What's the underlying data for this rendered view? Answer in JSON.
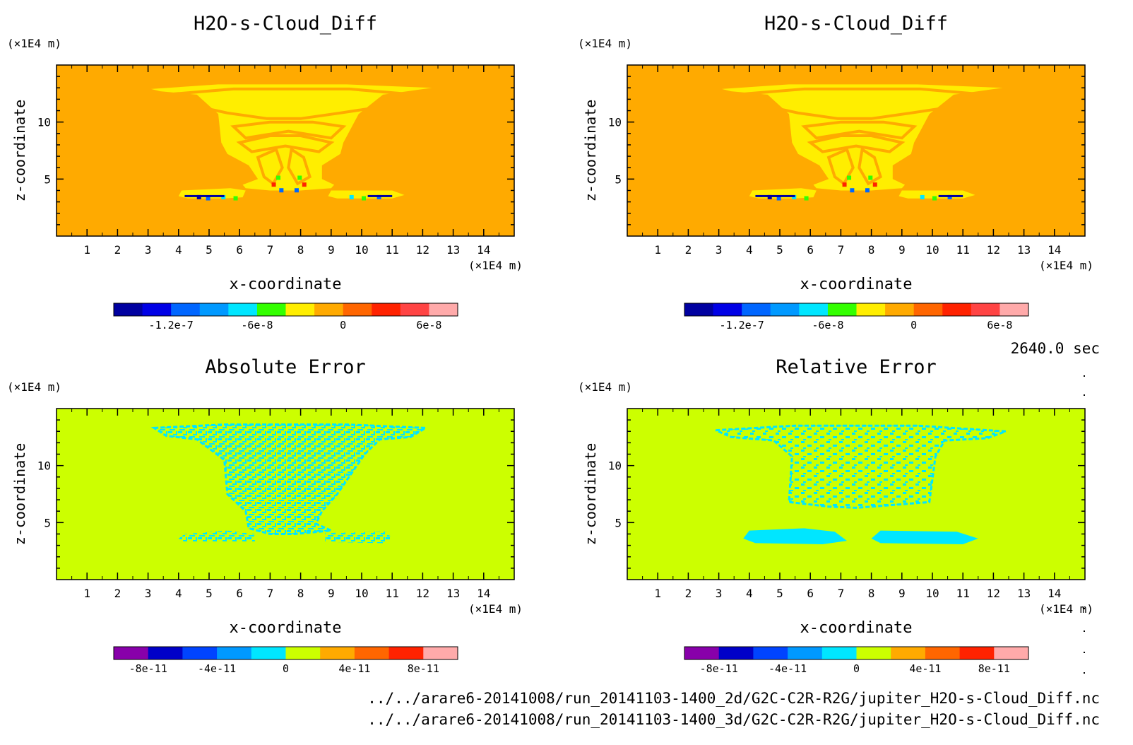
{
  "time_label": "2640.0 sec",
  "file_lines": [
    "../../arare6-20141008/run_20141103-1400_2d/G2C-C2R-R2G/jupiter_H2O-s-Cloud_Diff.nc",
    "../../arare6-20141008/run_20141103-1400_3d/G2C-C2R-R2G/jupiter_H2O-s-Cloud_Diff.nc"
  ],
  "chart_data": [
    {
      "type": "heatmap",
      "title": "H2O-s-Cloud_Diff",
      "xlabel": "x-coordinate",
      "ylabel": "z-coordinate",
      "x_unit": "(×1E4 m)",
      "y_unit": "(×1E4 m)",
      "xlim": [
        0,
        15
      ],
      "ylim": [
        0,
        15
      ],
      "xticks": [
        "1",
        "2",
        "3",
        "4",
        "5",
        "6",
        "7",
        "8",
        "9",
        "10",
        "11",
        "12",
        "13",
        "14"
      ],
      "yticks": [
        "5",
        "10"
      ],
      "background_color": "#ffaa00",
      "feature_color": "#ffee00",
      "colorbar": {
        "colors": [
          "#0000a0",
          "#0000e6",
          "#0066ff",
          "#0099ff",
          "#00e6ff",
          "#33ff00",
          "#ffee00",
          "#ffaa00",
          "#ff6600",
          "#ff2200",
          "#ff4444",
          "#ffaaaa"
        ],
        "tick_labels": [
          "-1.2e-7",
          "-6e-8",
          "0",
          "6e-8"
        ]
      }
    },
    {
      "type": "heatmap",
      "title": "H2O-s-Cloud_Diff",
      "xlabel": "x-coordinate",
      "ylabel": "z-coordinate",
      "x_unit": "(×1E4 m)",
      "y_unit": "(×1E4 m)",
      "xlim": [
        0,
        15
      ],
      "ylim": [
        0,
        15
      ],
      "xticks": [
        "1",
        "2",
        "3",
        "4",
        "5",
        "6",
        "7",
        "8",
        "9",
        "10",
        "11",
        "12",
        "13",
        "14"
      ],
      "yticks": [
        "5",
        "10"
      ],
      "background_color": "#ffaa00",
      "feature_color": "#ffee00",
      "colorbar": {
        "colors": [
          "#0000a0",
          "#0000e6",
          "#0066ff",
          "#0099ff",
          "#00e6ff",
          "#33ff00",
          "#ffee00",
          "#ffaa00",
          "#ff6600",
          "#ff2200",
          "#ff4444",
          "#ffaaaa"
        ],
        "tick_labels": [
          "-1.2e-7",
          "-6e-8",
          "0",
          "6e-8"
        ]
      }
    },
    {
      "type": "heatmap",
      "title": "Absolute Error",
      "xlabel": "x-coordinate",
      "ylabel": "z-coordinate",
      "x_unit": "(×1E4 m)",
      "y_unit": "(×1E4 m)",
      "xlim": [
        0,
        15
      ],
      "ylim": [
        0,
        15
      ],
      "xticks": [
        "1",
        "2",
        "3",
        "4",
        "5",
        "6",
        "7",
        "8",
        "9",
        "10",
        "11",
        "12",
        "13",
        "14"
      ],
      "yticks": [
        "5",
        "10"
      ],
      "background_color": "#ccff00",
      "feature_color": "#00e6ff",
      "colorbar": {
        "colors": [
          "#8800aa",
          "#0000c8",
          "#0044ff",
          "#0099ff",
          "#00e6ff",
          "#ccff00",
          "#ffaa00",
          "#ff6600",
          "#ff2200",
          "#ffaaaa"
        ],
        "tick_labels": [
          "-8e-11",
          "-4e-11",
          "0",
          "4e-11",
          "8e-11"
        ]
      }
    },
    {
      "type": "heatmap",
      "title": "Relative Error",
      "xlabel": "x-coordinate",
      "ylabel": "z-coordinate",
      "x_unit": "(×1E4 m)",
      "y_unit": "(×1E4 m)",
      "xlim": [
        0,
        15
      ],
      "ylim": [
        0,
        15
      ],
      "xticks": [
        "1",
        "2",
        "3",
        "4",
        "5",
        "6",
        "7",
        "8",
        "9",
        "10",
        "11",
        "12",
        "13",
        "14"
      ],
      "yticks": [
        "5",
        "10"
      ],
      "background_color": "#ccff00",
      "feature_color": "#00e6ff",
      "colorbar": {
        "colors": [
          "#8800aa",
          "#0000c8",
          "#0044ff",
          "#0099ff",
          "#00e6ff",
          "#ccff00",
          "#ffaa00",
          "#ff6600",
          "#ff2200",
          "#ffaaaa"
        ],
        "tick_labels": [
          "-8e-11",
          "-4e-11",
          "0",
          "4e-11",
          "8e-11"
        ]
      }
    }
  ]
}
